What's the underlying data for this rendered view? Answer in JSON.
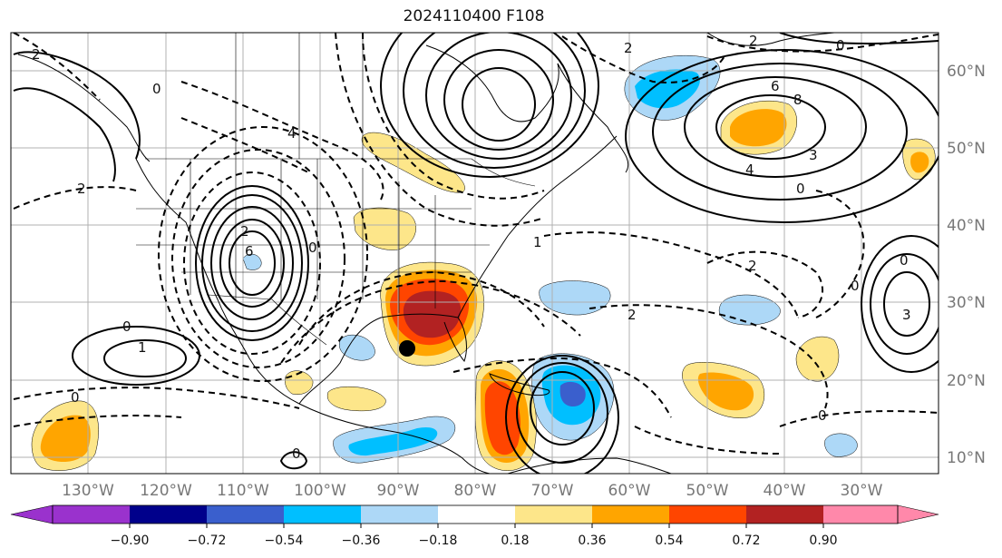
{
  "title": "2024110400 F108",
  "colors": {
    "purple": "#9a32cd",
    "navy": "#00008b",
    "royalblue": "#3a5fcd",
    "deepskyblue": "#00bfff",
    "lightblue": "#add8f7",
    "white": "#ffffff",
    "lightyellow": "#fde68a",
    "orange": "#ffa500",
    "orangered": "#ff4500",
    "firebrick": "#b22222",
    "pink": "#ff88aa",
    "contour": "#000000",
    "grid": "#b0b0b0",
    "marker": "#000000"
  },
  "map": {
    "lon_labels": [
      "130°W",
      "120°W",
      "110°W",
      "100°W",
      "90°W",
      "80°W",
      "70°W",
      "60°W",
      "50°W",
      "40°W",
      "30°W"
    ],
    "lat_labels": [
      "60°N",
      "50°N",
      "40°N",
      "30°N",
      "20°N",
      "10°N"
    ],
    "contour_labels": [
      "2",
      "0",
      "2",
      "6",
      "4",
      "2",
      "2",
      "0",
      "6",
      "8",
      "4",
      "3",
      "0",
      "2",
      "1",
      "0",
      "3",
      "0",
      "0",
      "2",
      "1",
      "2",
      "0",
      "0",
      "0",
      "0"
    ],
    "marker": "storm-center-dot"
  },
  "colorbar": {
    "ticks": [
      "−0.90",
      "−0.72",
      "−0.54",
      "−0.36",
      "−0.18",
      "0.18",
      "0.36",
      "0.54",
      "0.72",
      "0.90"
    ]
  }
}
